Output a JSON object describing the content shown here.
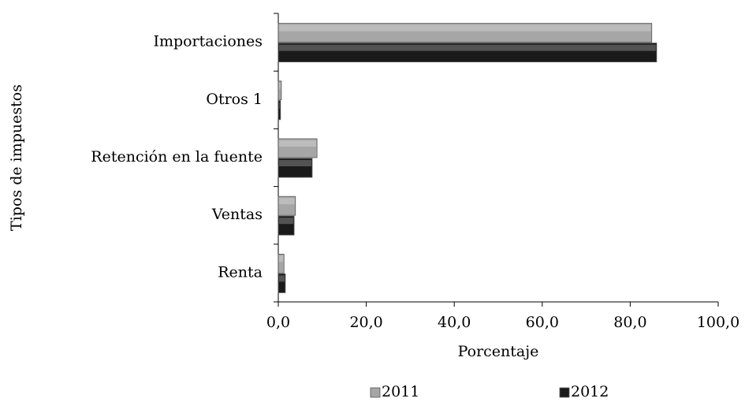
{
  "chart_data": {
    "type": "bar",
    "orientation": "horizontal",
    "categories": [
      "Importaciones",
      "Otros 1",
      "Retención en la fuente",
      "Ventas",
      "Renta"
    ],
    "series": [
      {
        "name": "2011",
        "color": "#a6a6a6",
        "values": [
          84.9,
          0.7,
          8.8,
          3.9,
          1.3
        ]
      },
      {
        "name": "2012",
        "color": "#1a1a1a",
        "values": [
          86.0,
          0.5,
          7.7,
          3.6,
          1.6
        ]
      }
    ],
    "xlabel": "Porcentaje",
    "ylabel": "Tipos de impuestos",
    "xlim": [
      0,
      100
    ],
    "xticks": [
      {
        "value": 0,
        "label": "0,0"
      },
      {
        "value": 20,
        "label": "20,0"
      },
      {
        "value": 40,
        "label": "40,0"
      },
      {
        "value": 60,
        "label": "60,0"
      },
      {
        "value": 80,
        "label": "80,0"
      },
      {
        "value": 100,
        "label": "100,0"
      }
    ],
    "legend": "bottom"
  }
}
